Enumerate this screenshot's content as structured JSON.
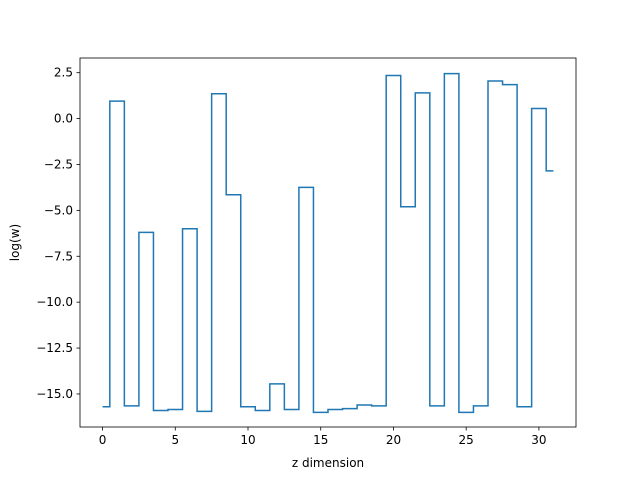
{
  "chart_data": {
    "type": "line",
    "drawstyle": "steps-mid",
    "title": "",
    "xlabel": "z dimension",
    "ylabel": "log(w)",
    "xlim": [
      -1.55,
      32.55
    ],
    "ylim": [
      -16.8,
      3.3
    ],
    "xticks": [
      0,
      5,
      10,
      15,
      20,
      25,
      30
    ],
    "xtick_labels": [
      "0",
      "5",
      "10",
      "15",
      "20",
      "25",
      "30"
    ],
    "yticks": [
      2.5,
      0.0,
      -2.5,
      -5.0,
      -7.5,
      -10.0,
      -12.5,
      -15.0
    ],
    "ytick_labels": [
      "2.5",
      "0.0",
      "−2.5",
      "−5.0",
      "−7.5",
      "−10.0",
      "−12.5",
      "−15.0"
    ],
    "grid": false,
    "color": "#1f77b4",
    "x": [
      0,
      1,
      2,
      3,
      4,
      5,
      6,
      7,
      8,
      9,
      10,
      11,
      12,
      13,
      14,
      15,
      16,
      17,
      18,
      19,
      20,
      21,
      22,
      23,
      24,
      25,
      26,
      27,
      28,
      29,
      30,
      31
    ],
    "values": [
      -15.7,
      0.95,
      -15.65,
      -6.2,
      -15.9,
      -15.85,
      -6.0,
      -15.95,
      1.35,
      -4.15,
      -15.7,
      -15.9,
      -14.45,
      -15.85,
      -3.75,
      -16.0,
      -15.85,
      -15.8,
      -15.6,
      -15.65,
      2.35,
      -4.8,
      1.4,
      -15.65,
      2.45,
      -16.0,
      -15.65,
      2.05,
      1.85,
      -15.7,
      0.55,
      -2.85
    ]
  }
}
